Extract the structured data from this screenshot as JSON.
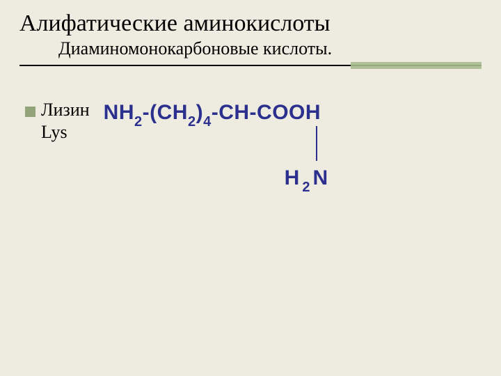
{
  "slide": {
    "title": "Алифатические аминокислоты",
    "subtitle": "Диаминомонокарбоновые кислоты.",
    "background_color": "#eeece0",
    "rule_accent_color": "#a7bb8f",
    "bullet_color": "#93a37a"
  },
  "item": {
    "name": "Лизин",
    "abbreviation": "Lys"
  },
  "formula": {
    "color": "#2b2f8e",
    "parts": {
      "nh2": "NH",
      "nh2_sub": "2",
      "dash1": "-",
      "ch2_open": "(CH",
      "ch2_sub1": "2",
      "ch2_close": ")",
      "ch2_sub2": "4",
      "dash2": "-",
      "ch": "CH",
      "dash3": "-",
      "cooh": "COOH",
      "bottom_h": "H",
      "bottom_sub": "2",
      "bottom_n": "N"
    }
  }
}
